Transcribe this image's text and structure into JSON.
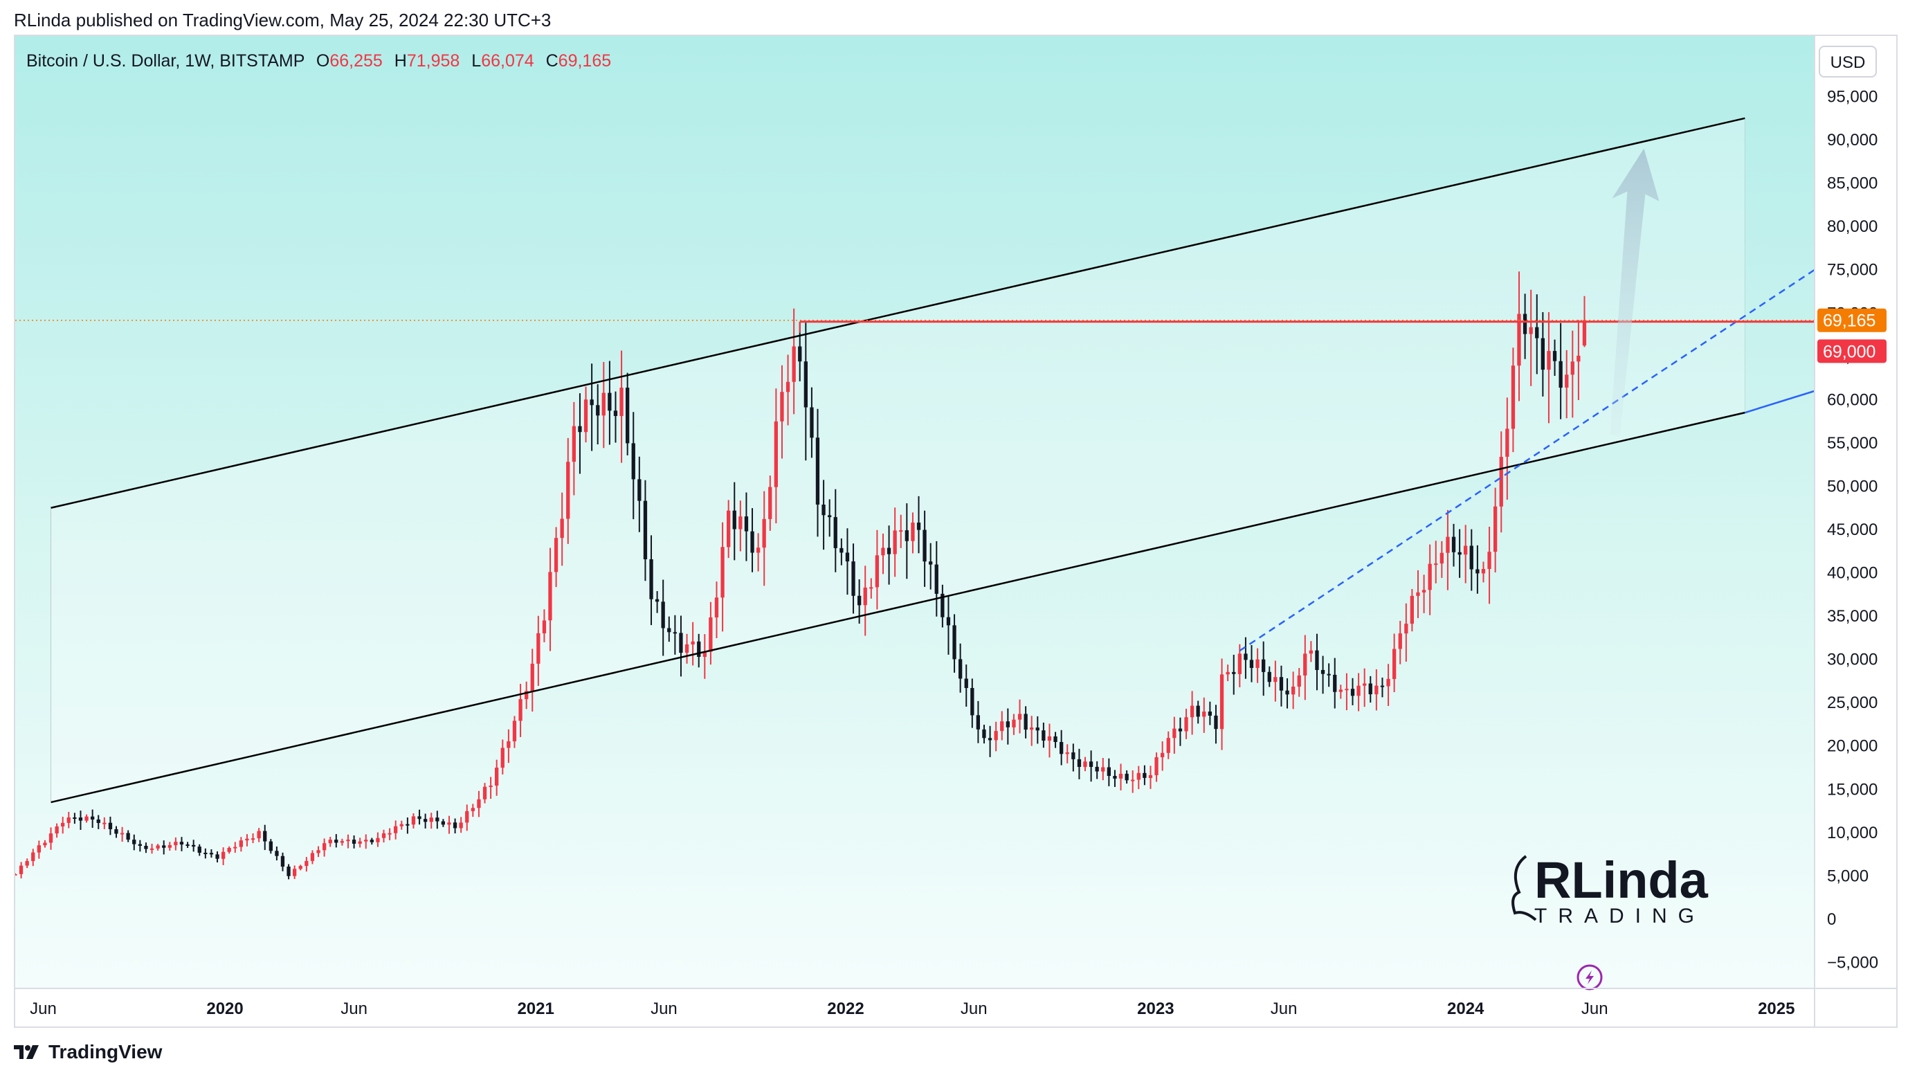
{
  "header": {
    "published": "RLinda published on TradingView.com, May 25, 2024 22:30 UTC+3"
  },
  "legend": {
    "symbol": "Bitcoin / U.S. Dollar, 1W, BITSTAMP",
    "open_label": "O",
    "open": "66,255",
    "high_label": "H",
    "high": "71,958",
    "low_label": "L",
    "low": "66,074",
    "close_label": "C",
    "close": "69,165"
  },
  "currency_button": "USD",
  "price_tags": {
    "last": "69,165",
    "level": "69,000"
  },
  "watermark": {
    "top": "RLinda",
    "bottom": "TRADING"
  },
  "footer": {
    "brand": "TradingView"
  },
  "colors": {
    "up": "#f23645",
    "down": "#131722",
    "channel": "#000000",
    "trend_dashed": "#2962ff",
    "resistance": "#f23645",
    "last_tag": "#f57c00"
  },
  "chart_data": {
    "type": "candlestick",
    "timeframe": "1W",
    "x_range": [
      "2019-04-29",
      "2025-02-15"
    ],
    "y_range": [
      -8000,
      102000
    ],
    "yticks": [
      "95,000",
      "90,000",
      "85,000",
      "80,000",
      "75,000",
      "70,000",
      "65,000",
      "60,000",
      "55,000",
      "50,000",
      "45,000",
      "40,000",
      "35,000",
      "30,000",
      "25,000",
      "20,000",
      "15,000",
      "10,000",
      "5,000",
      "0",
      "−5,000"
    ],
    "ytick_values": [
      95000,
      90000,
      85000,
      80000,
      75000,
      70000,
      65000,
      60000,
      55000,
      50000,
      45000,
      40000,
      35000,
      30000,
      25000,
      20000,
      15000,
      10000,
      5000,
      0,
      -5000
    ],
    "xticks": [
      {
        "label": "Jun",
        "date": "2019-06-01",
        "year": false
      },
      {
        "label": "2020",
        "date": "2020-01-01",
        "year": true
      },
      {
        "label": "Jun",
        "date": "2020-06-01",
        "year": false
      },
      {
        "label": "2021",
        "date": "2021-01-01",
        "year": true
      },
      {
        "label": "Jun",
        "date": "2021-06-01",
        "year": false
      },
      {
        "label": "2022",
        "date": "2022-01-01",
        "year": true
      },
      {
        "label": "Jun",
        "date": "2022-06-01",
        "year": false
      },
      {
        "label": "2023",
        "date": "2023-01-01",
        "year": true
      },
      {
        "label": "Jun",
        "date": "2023-06-01",
        "year": false
      },
      {
        "label": "2024",
        "date": "2024-01-01",
        "year": true
      },
      {
        "label": "Jun",
        "date": "2024-06-01",
        "year": false
      },
      {
        "label": "2025",
        "date": "2025-01-01",
        "year": true
      }
    ],
    "anchors": [
      [
        "2019-04-29",
        5200
      ],
      [
        "2019-06-24",
        11500
      ],
      [
        "2019-08-05",
        11500
      ],
      [
        "2019-09-23",
        8200
      ],
      [
        "2019-11-11",
        8700
      ],
      [
        "2019-12-23",
        7200
      ],
      [
        "2020-02-10",
        10100
      ],
      [
        "2020-03-16",
        5000
      ],
      [
        "2020-04-27",
        8800
      ],
      [
        "2020-06-29",
        9200
      ],
      [
        "2020-08-10",
        11800
      ],
      [
        "2020-09-28",
        10700
      ],
      [
        "2020-11-09",
        15500
      ],
      [
        "2020-12-28",
        29000
      ],
      [
        "2021-01-11",
        35000
      ],
      [
        "2021-02-15",
        57000
      ],
      [
        "2021-03-08",
        58500
      ],
      [
        "2021-04-12",
        60500
      ],
      [
        "2021-05-17",
        37000
      ],
      [
        "2021-06-21",
        31500
      ],
      [
        "2021-07-19",
        30500
      ],
      [
        "2021-08-16",
        47000
      ],
      [
        "2021-09-20",
        42000
      ],
      [
        "2021-10-18",
        61500
      ],
      [
        "2021-11-08",
        64500
      ],
      [
        "2021-11-29",
        49500
      ],
      [
        "2022-01-17",
        36000
      ],
      [
        "2022-02-07",
        42000
      ],
      [
        "2022-03-28",
        45500
      ],
      [
        "2022-05-09",
        30000
      ],
      [
        "2022-06-13",
        20500
      ],
      [
        "2022-07-25",
        23500
      ],
      [
        "2022-08-15",
        21500
      ],
      [
        "2022-09-19",
        19000
      ],
      [
        "2022-11-07",
        16500
      ],
      [
        "2022-12-26",
        16500
      ],
      [
        "2023-01-16",
        21000
      ],
      [
        "2023-02-13",
        24200
      ],
      [
        "2023-03-13",
        22500
      ],
      [
        "2023-03-20",
        28000
      ],
      [
        "2023-04-10",
        30200
      ],
      [
        "2023-06-12",
        26200
      ],
      [
        "2023-06-26",
        30500
      ],
      [
        "2023-08-14",
        26000
      ],
      [
        "2023-09-25",
        27000
      ],
      [
        "2023-10-23",
        34500
      ],
      [
        "2023-12-04",
        43500
      ],
      [
        "2024-01-22",
        40000
      ],
      [
        "2024-02-12",
        52000
      ],
      [
        "2024-03-04",
        68000
      ],
      [
        "2024-03-11",
        69500
      ],
      [
        "2024-04-01",
        66000
      ],
      [
        "2024-04-29",
        60800
      ],
      [
        "2024-05-13",
        67000
      ],
      [
        "2024-05-20",
        69165
      ]
    ],
    "last_candle": {
      "open": 66255,
      "high": 71958,
      "low": 66074,
      "close": 69165
    },
    "ascending_channel": {
      "upper": [
        [
          "2019-06-10",
          47500
        ],
        [
          "2024-11-25",
          92500
        ]
      ],
      "lower": [
        [
          "2019-06-10",
          13500
        ],
        [
          "2024-11-25",
          58500
        ]
      ],
      "lower_extension": [
        [
          "2024-11-25",
          58500
        ],
        [
          "2025-02-15",
          61000
        ]
      ]
    },
    "dashed_trendline": [
      [
        "2023-04-10",
        31000
      ],
      [
        "2025-02-15",
        75000
      ]
    ],
    "resistance_level": {
      "value": 69000,
      "from": "2021-11-08"
    },
    "last_price_line": 69165,
    "projection_arrow": {
      "from": [
        "2024-06-24",
        56000
      ],
      "to": [
        "2024-07-29",
        89000
      ]
    }
  }
}
